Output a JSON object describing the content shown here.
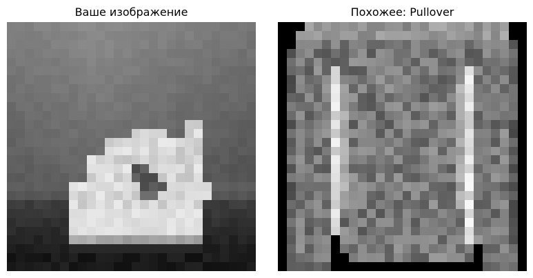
{
  "panels": {
    "left": {
      "title": "Ваше изображение"
    },
    "right": {
      "title": "Похожее: Pullover"
    }
  }
}
